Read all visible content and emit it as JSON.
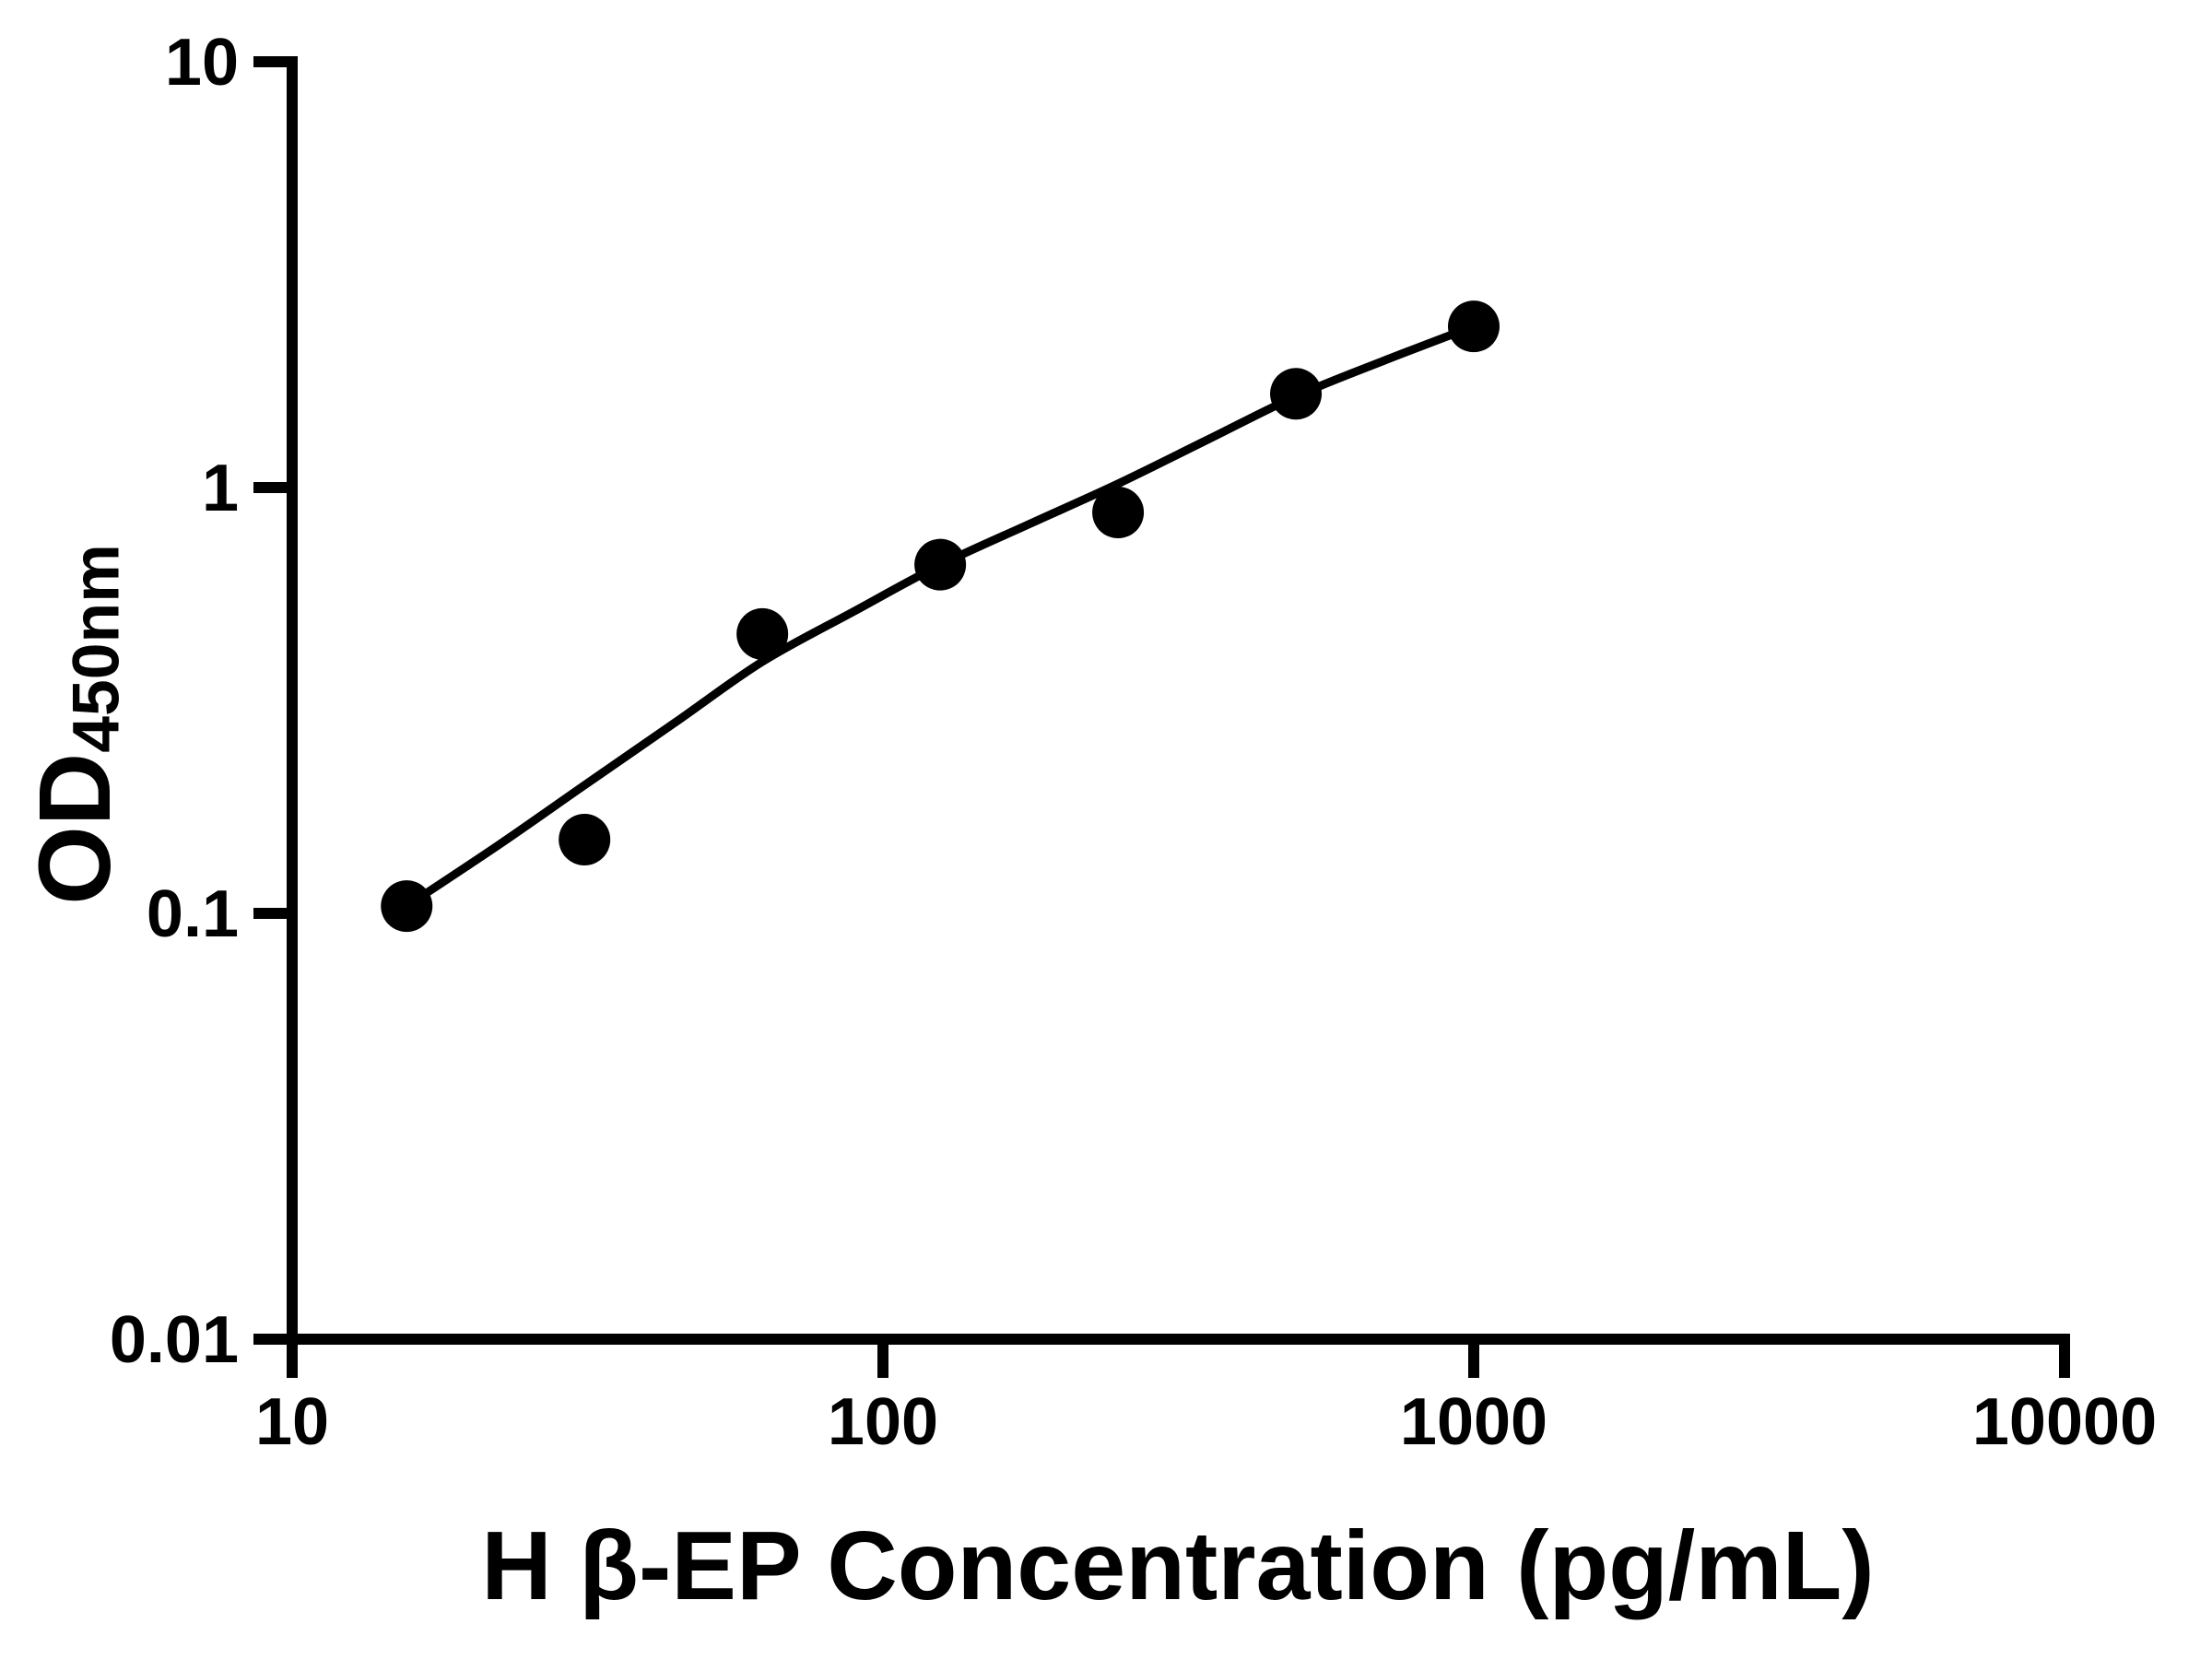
{
  "figure": {
    "background_color": "#ffffff",
    "foreground_color": "#000000"
  },
  "chart_data": {
    "type": "scatter",
    "title": "",
    "xlabel": "H β-EP Concentration (pg/mL)",
    "ylabel_main": "OD",
    "ylabel_subscript": "450nm",
    "x_scale": "log",
    "y_scale": "log",
    "xlim": [
      10,
      10000
    ],
    "ylim": [
      0.01,
      10
    ],
    "x_ticks": [
      10,
      100,
      1000,
      10000
    ],
    "x_tick_labels": [
      "10",
      "100",
      "1000",
      "10000"
    ],
    "y_ticks": [
      10,
      1,
      0.1,
      0.01
    ],
    "y_tick_labels": [
      "10",
      "1",
      "0.1",
      "0.01"
    ],
    "grid": "off",
    "legend": "none",
    "series": [
      {
        "name": "standard-points",
        "marker": "filled-circle",
        "color": "#000000",
        "points": [
          [
            15.625,
            0.104
          ],
          [
            31.25,
            0.149
          ],
          [
            62.5,
            0.453
          ],
          [
            125,
            0.659
          ],
          [
            250,
            0.874
          ],
          [
            500,
            1.66
          ],
          [
            1000,
            2.39
          ]
        ]
      }
    ],
    "fit_curve": {
      "name": "fitted-standard-curve",
      "color": "#000000",
      "x": [
        15.625,
        22.4,
        31.25,
        44.7,
        62.5,
        89.1,
        125,
        178,
        250,
        355,
        500,
        708,
        1000
      ],
      "y": [
        0.104,
        0.145,
        0.2,
        0.282,
        0.39,
        0.511,
        0.658,
        0.824,
        1.021,
        1.297,
        1.638,
        1.991,
        2.392
      ]
    }
  }
}
